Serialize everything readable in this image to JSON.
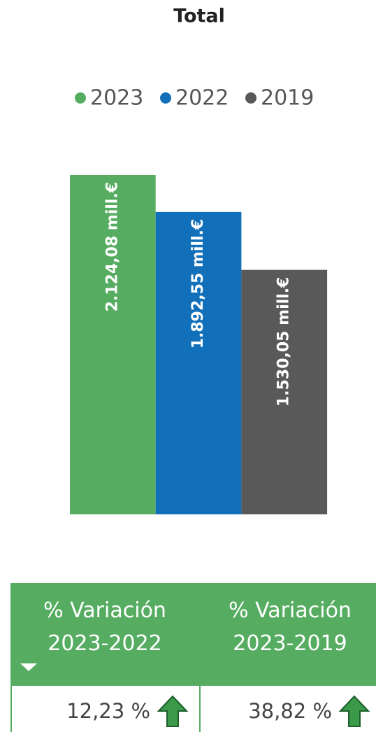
{
  "chart_data": {
    "type": "bar",
    "title": "Total",
    "categories": [
      null
    ],
    "series": [
      {
        "name": "2023",
        "color": "#56ad62",
        "values": [
          2124.08
        ],
        "value_labels": [
          "2.124,08 mill.€"
        ]
      },
      {
        "name": "2022",
        "color": "#1170b9",
        "values": [
          1892.55
        ],
        "value_labels": [
          "1.892,55 mill.€"
        ]
      },
      {
        "name": "2019",
        "color": "#595959",
        "values": [
          1530.05
        ],
        "value_labels": [
          "1.530,05 mill.€"
        ]
      }
    ]
  },
  "table": {
    "columns": [
      "% Variación 2023-2022",
      "% Variación 2023-2019"
    ],
    "rows": [
      [
        "12,23 %",
        "38,82 %"
      ]
    ]
  }
}
